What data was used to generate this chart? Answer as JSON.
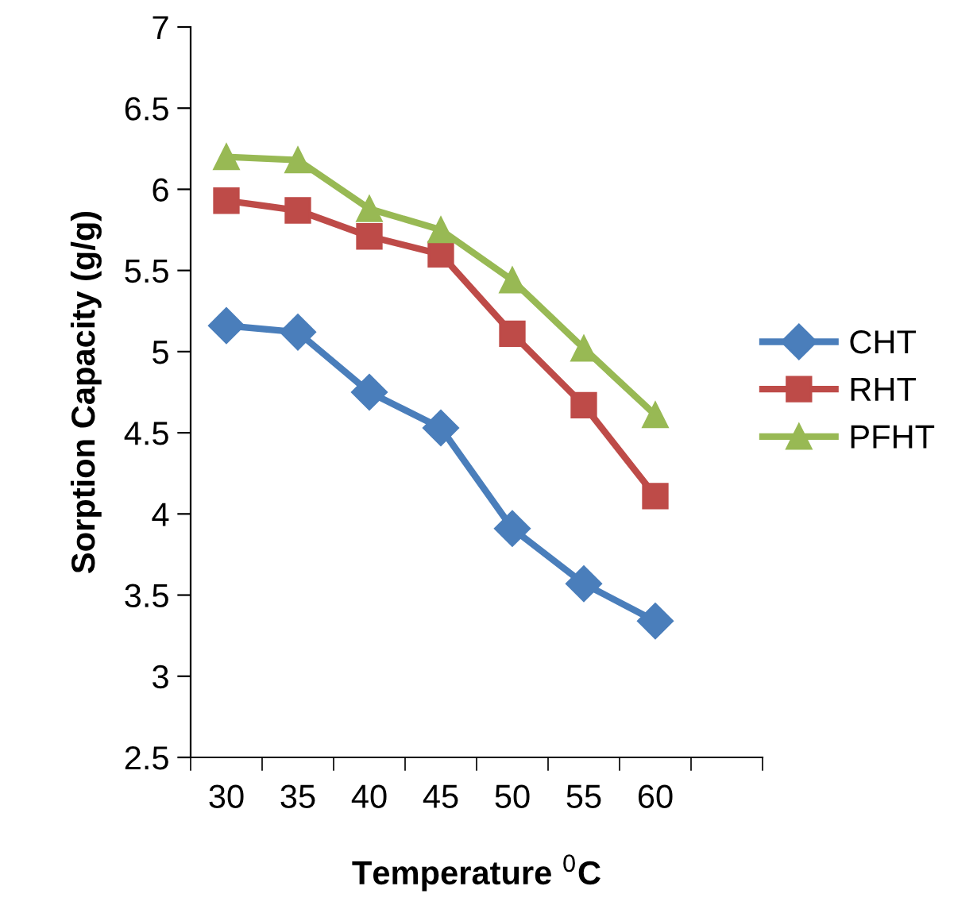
{
  "chart_data": {
    "type": "line",
    "xlabel": "Temperature $^{0}$C",
    "ylabel": "Sorption Capacity (g/g)",
    "categories": [
      "30",
      "35",
      "40",
      "45",
      "50",
      "55",
      "60"
    ],
    "series": [
      {
        "name": "CHT",
        "color": "#4a7ebb",
        "marker": "diamond",
        "values": [
          5.16,
          5.12,
          4.75,
          4.53,
          3.91,
          3.57,
          3.34
        ]
      },
      {
        "name": "RHT",
        "color": "#be4b48",
        "marker": "square",
        "values": [
          5.93,
          5.87,
          5.71,
          5.6,
          5.11,
          4.67,
          4.11
        ]
      },
      {
        "name": "PFHT",
        "color": "#98b954",
        "marker": "triangle",
        "values": [
          6.2,
          6.18,
          5.88,
          5.75,
          5.44,
          5.02,
          4.61
        ]
      }
    ],
    "ylim": [
      2.5,
      7
    ],
    "yticks": [
      2.5,
      {
        "value": 3,
        "label": "3"
      },
      3.5,
      {
        "value": 4,
        "label": "4"
      },
      4.5,
      {
        "value": 5,
        "label": "5"
      },
      5.5,
      {
        "value": 6,
        "label": "6"
      },
      6.5,
      {
        "value": 7,
        "label": "7"
      }
    ],
    "grid": false,
    "legend": "right",
    "line_style": "solid"
  }
}
